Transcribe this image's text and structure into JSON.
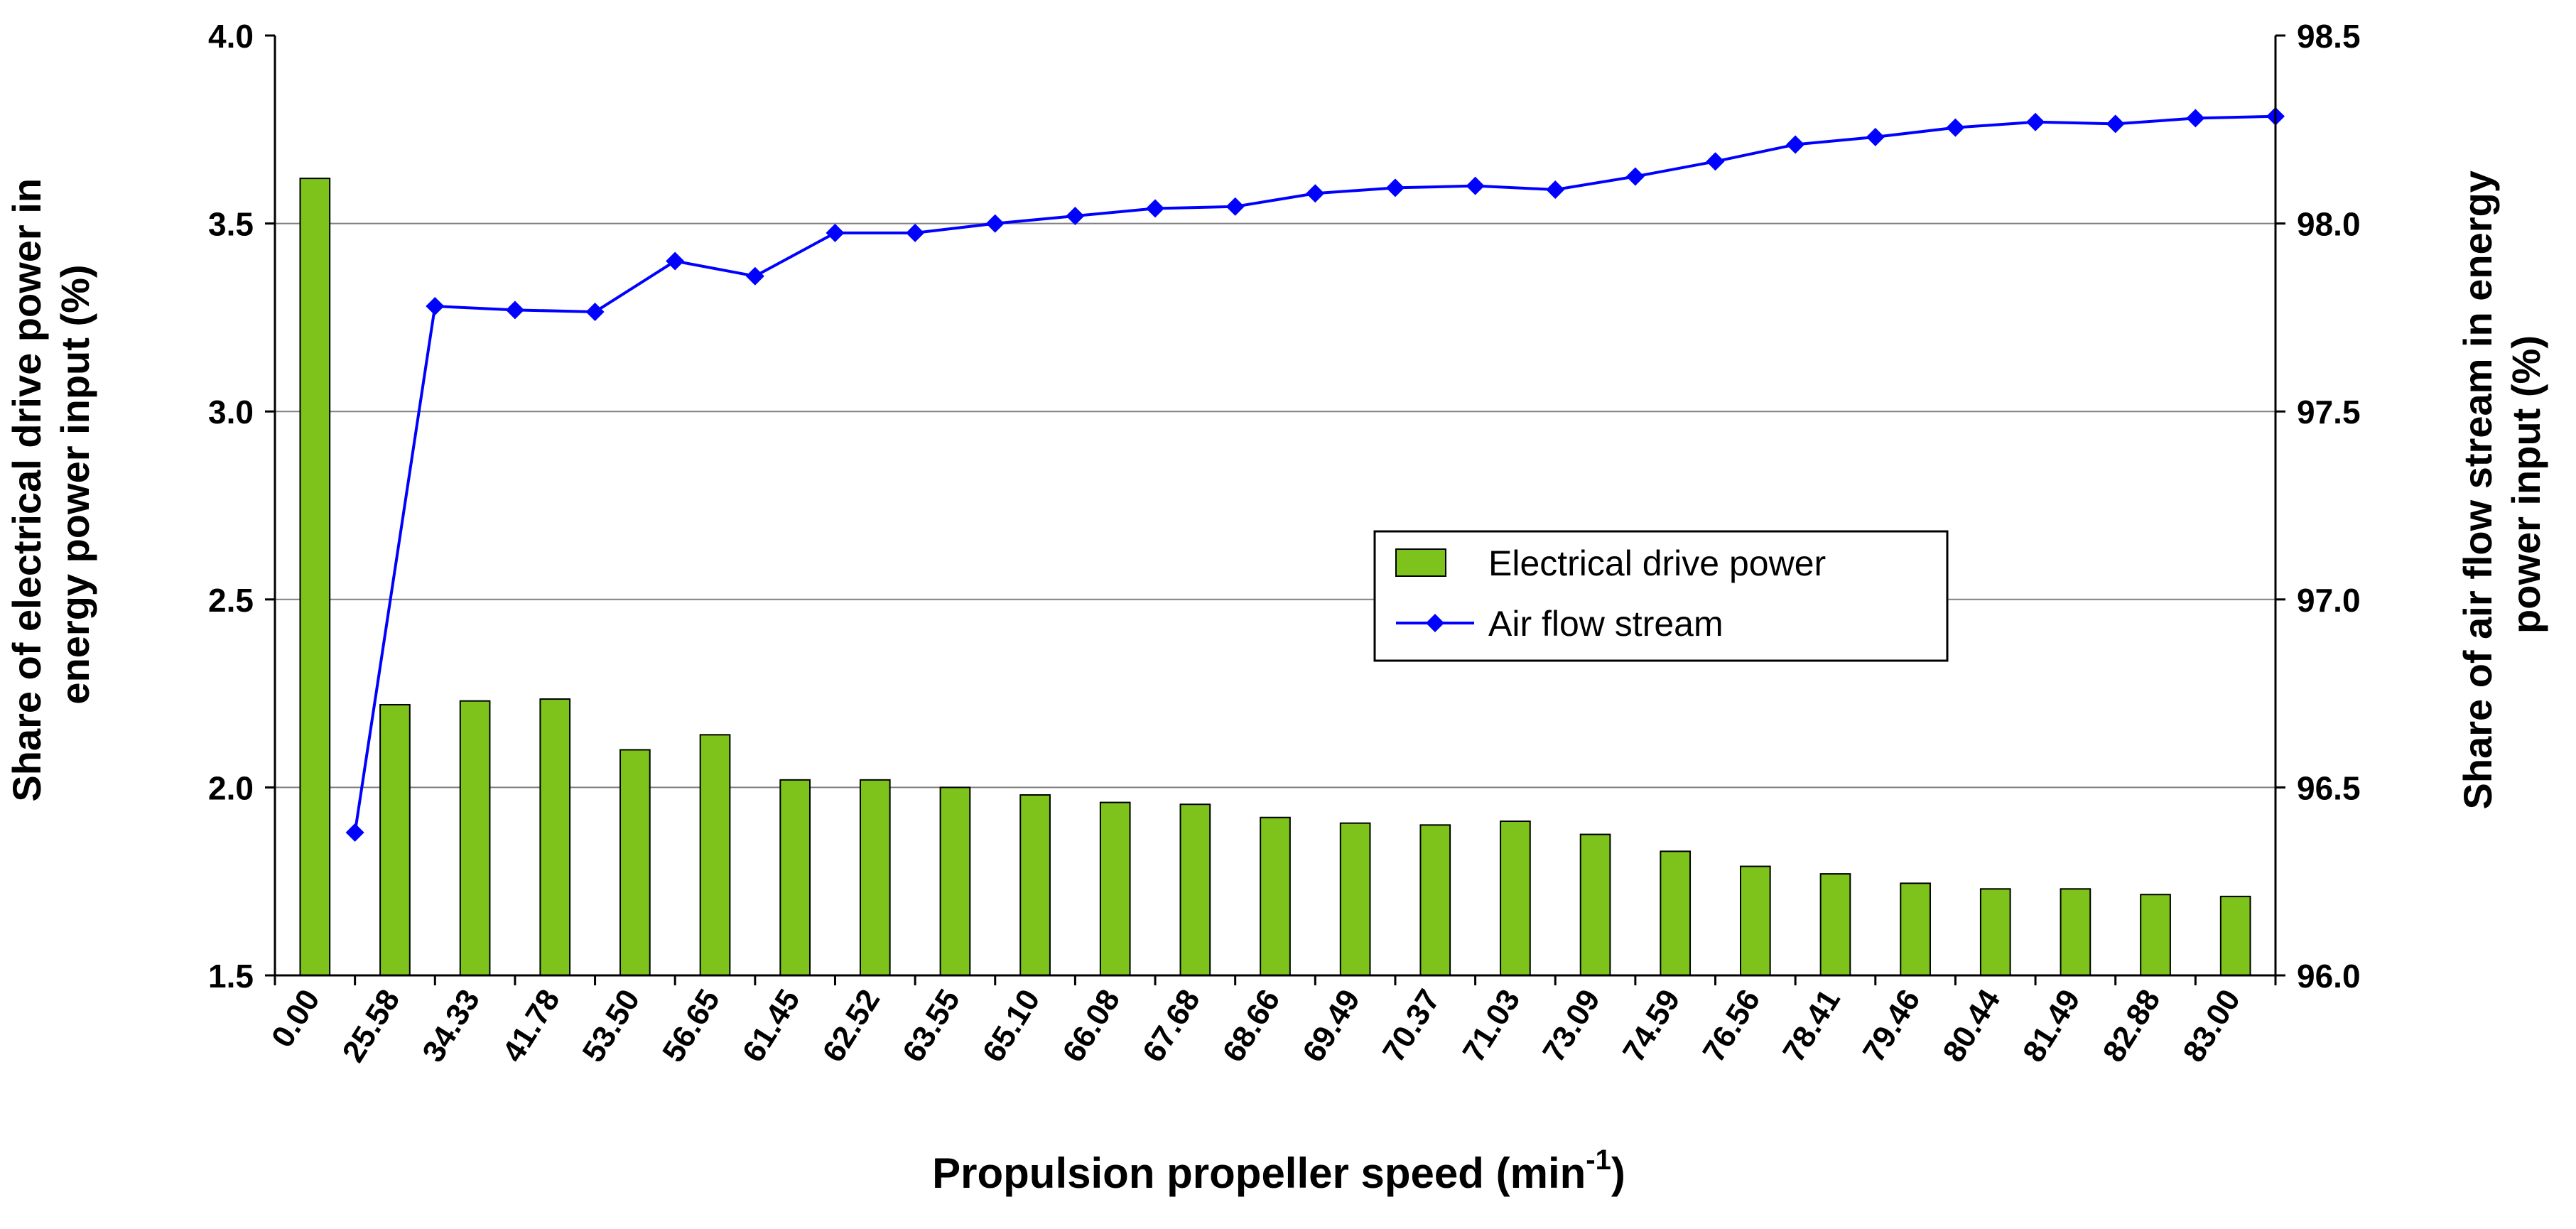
{
  "chart_data": {
    "type": "bar+line",
    "categories": [
      "0.00",
      "25.58",
      "34.33",
      "41.78",
      "53.50",
      "56.65",
      "61.45",
      "62.52",
      "63.55",
      "65.10",
      "66.08",
      "67.68",
      "68.66",
      "69.49",
      "70.37",
      "71.03",
      "73.09",
      "74.59",
      "76.56",
      "78.41",
      "79.46",
      "80.44",
      "81.49",
      "82.88",
      "83.00"
    ],
    "series": [
      {
        "name": "Electrical drive power",
        "type": "bar",
        "axis": "left",
        "color": "#7DC31B",
        "values": [
          3.62,
          2.22,
          2.23,
          2.235,
          2.1,
          2.14,
          2.02,
          2.02,
          2.0,
          1.98,
          1.96,
          1.955,
          1.92,
          1.905,
          1.9,
          1.91,
          1.875,
          1.83,
          1.79,
          1.77,
          1.745,
          1.73,
          1.73,
          1.715,
          1.71
        ]
      },
      {
        "name": "Air flow stream",
        "type": "line",
        "axis": "right",
        "color": "#0000FF",
        "values": [
          96.38,
          97.78,
          97.77,
          97.765,
          97.9,
          97.86,
          97.975,
          97.975,
          98.0,
          98.02,
          98.04,
          98.045,
          98.08,
          98.095,
          98.1,
          98.09,
          98.125,
          98.165,
          98.21,
          98.23,
          98.255,
          98.27,
          98.265,
          98.28,
          98.285
        ]
      }
    ],
    "xlabel_main": "Propulsion propeller speed (min",
    "xlabel_sup": "-1",
    "xlabel_end": ")",
    "ylabel_left_line1": "Share of electrical drive power in",
    "ylabel_left_line2": "energy power input (%)",
    "ylabel_right_line1": "Share of air flow stream in energy",
    "ylabel_right_line2": "power input (%)",
    "ylim_left": [
      1.5,
      4.0
    ],
    "yticks_left": [
      "1.5",
      "2.0",
      "2.5",
      "3.0",
      "3.5",
      "4.0"
    ],
    "ylim_right": [
      96.0,
      98.5
    ],
    "yticks_right": [
      "96.0",
      "96.5",
      "97.0",
      "97.5",
      "98.0",
      "98.5"
    ],
    "grid": true,
    "legend_position": "center-right"
  }
}
